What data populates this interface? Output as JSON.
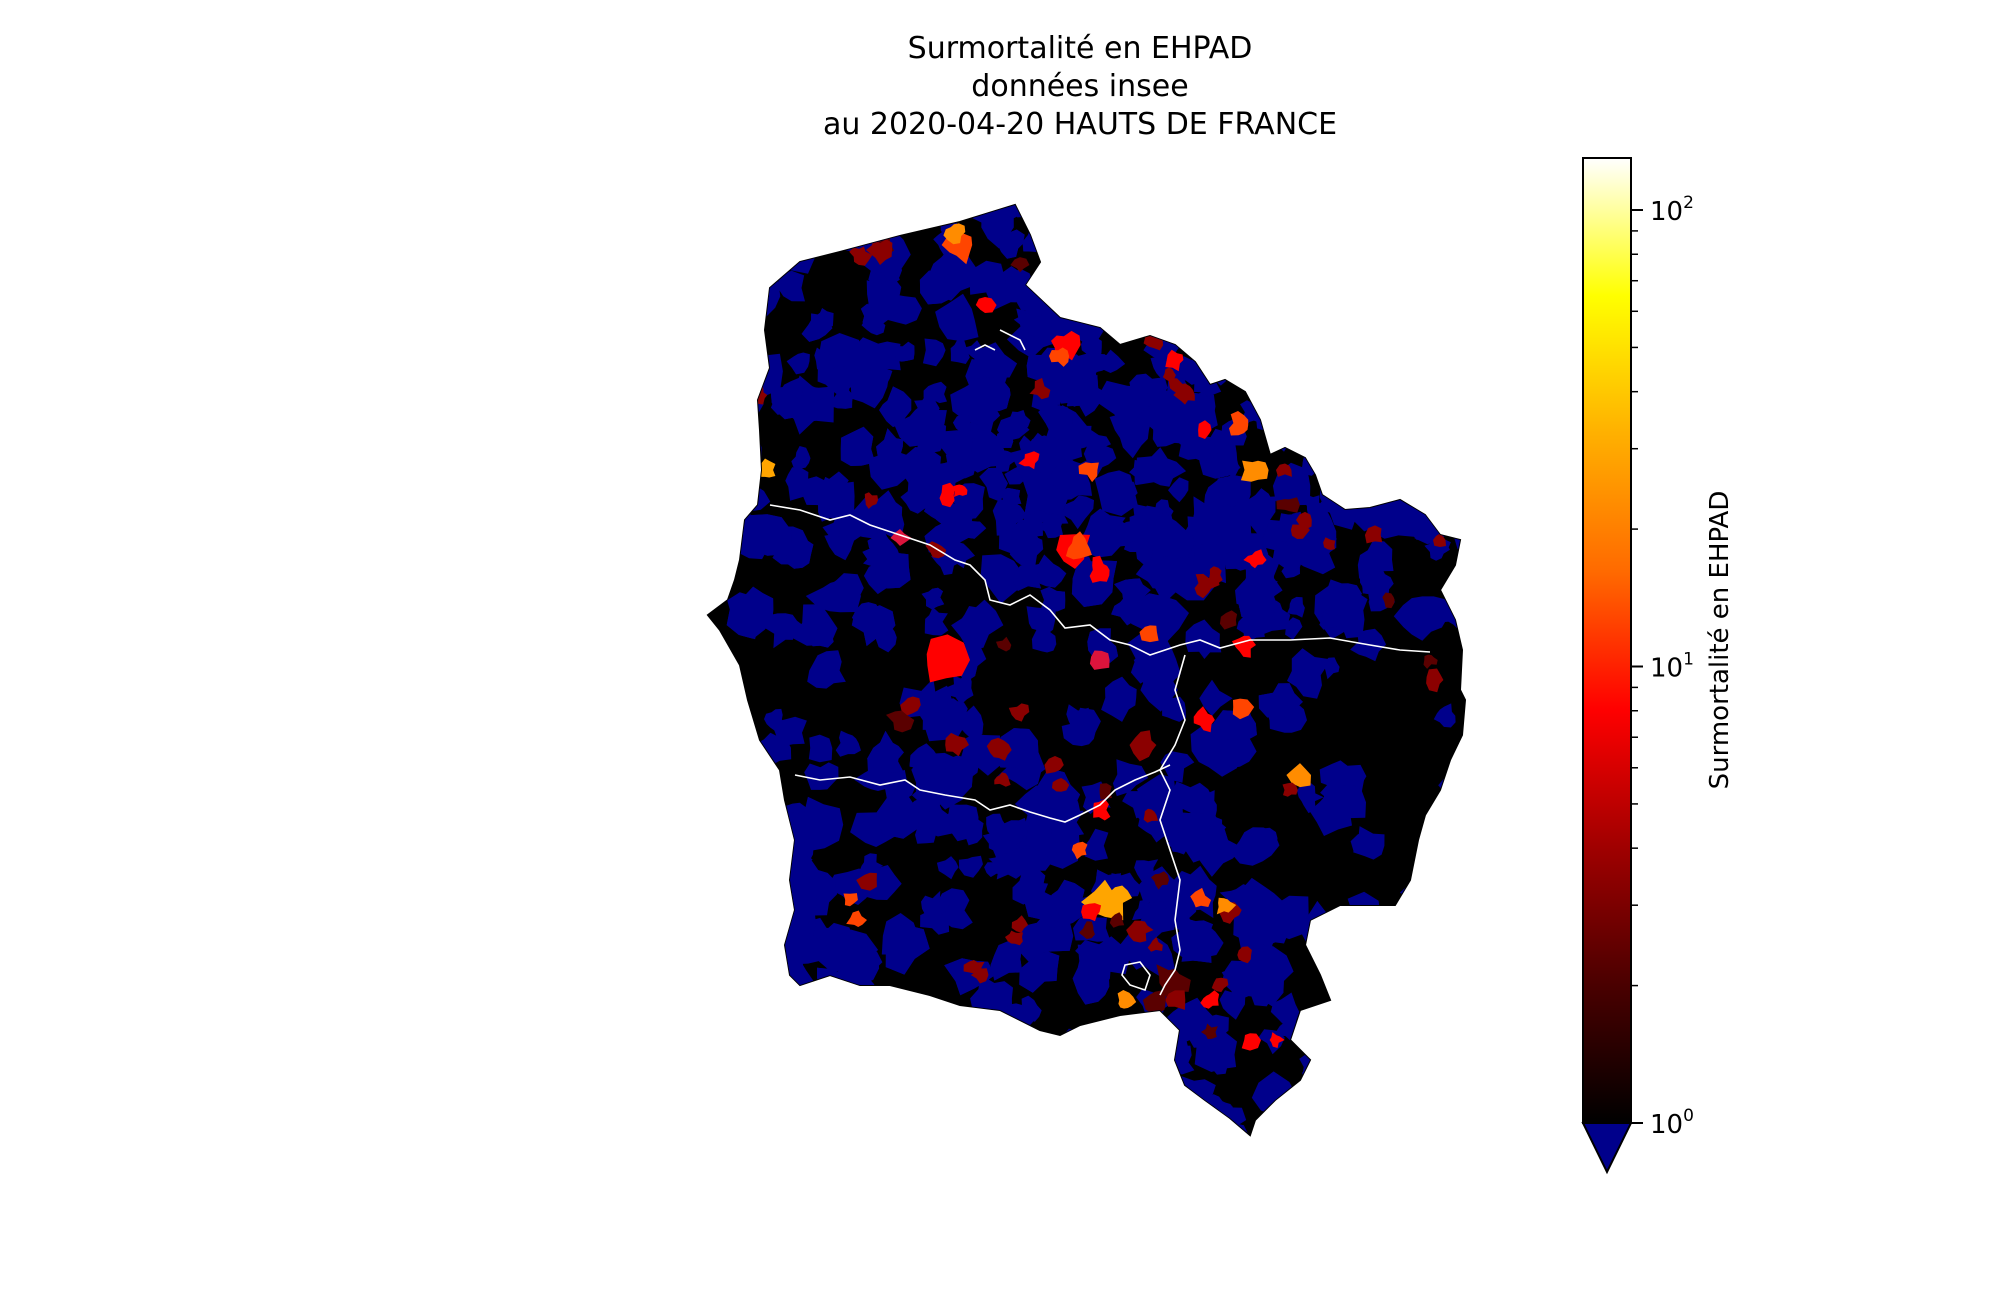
{
  "title": {
    "line1": "Surmortalité en EHPAD",
    "line2": "données insee",
    "line3": "au 2020-04-20 HAUTS DE FRANCE"
  },
  "colorbar": {
    "label": "Surmortalité en EHPAD",
    "scale": "log",
    "range": [
      1,
      130
    ],
    "ticks": [
      {
        "base": "10",
        "exp": "2",
        "value": 100
      },
      {
        "base": "10",
        "exp": "1",
        "value": 10
      },
      {
        "base": "10",
        "exp": "0",
        "value": 1
      }
    ],
    "colormap": "afmhot",
    "under_color": "#00008b",
    "gradient_stops": [
      "#000000",
      "#4a0000",
      "#a00000",
      "#ff0000",
      "#ff6a00",
      "#ffb000",
      "#ffff00",
      "#ffffff"
    ]
  },
  "map": {
    "region": "HAUTS DE FRANCE",
    "base_colors": {
      "under": "#00008b",
      "low": "#000000",
      "border": "#ffffff"
    },
    "hotspot_colors": [
      "#ff0000",
      "#ff4500",
      "#ff8c00",
      "#ffa500",
      "#8b0000",
      "#5a0000",
      "#dc143c"
    ]
  }
}
